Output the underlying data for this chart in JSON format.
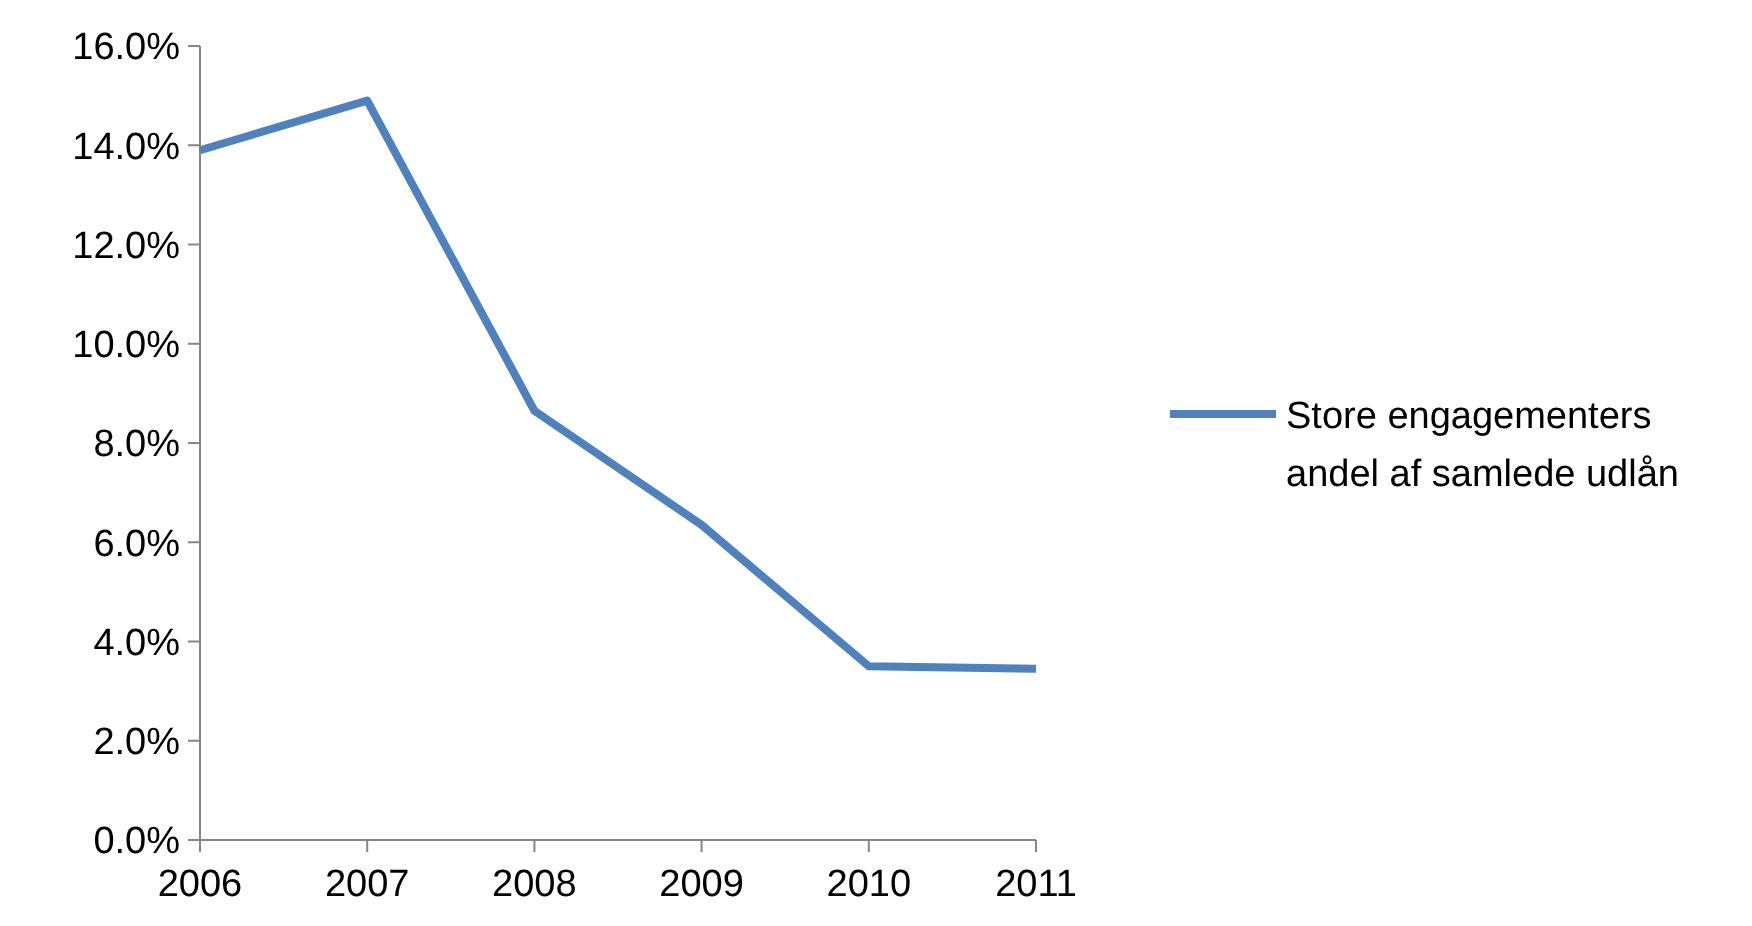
{
  "chart_data": {
    "type": "line",
    "x": [
      2006,
      2007,
      2008,
      2009,
      2010,
      2011
    ],
    "xlim": [
      2006,
      2011
    ],
    "xticks": [
      2006,
      2007,
      2008,
      2009,
      2010,
      2011
    ],
    "ylim": [
      0,
      16
    ],
    "yticks": [
      {
        "value": 0,
        "label": "0.0%"
      },
      {
        "value": 2,
        "label": "2.0%"
      },
      {
        "value": 4,
        "label": "4.0%"
      },
      {
        "value": 6,
        "label": "6.0%"
      },
      {
        "value": 8,
        "label": "8.0%"
      },
      {
        "value": 10,
        "label": "10.0%"
      },
      {
        "value": 12,
        "label": "12.0%"
      },
      {
        "value": 14,
        "label": "14.0%"
      },
      {
        "value": 16,
        "label": "16.0%"
      }
    ],
    "grid": false,
    "legend": "right",
    "marker": "none",
    "line_style": "solid",
    "series": [
      {
        "name": "Store engagementers andel af samlede udlån",
        "color": "#4f81bd",
        "values": [
          13.9,
          14.9,
          8.65,
          6.35,
          3.5,
          3.45
        ]
      }
    ]
  }
}
